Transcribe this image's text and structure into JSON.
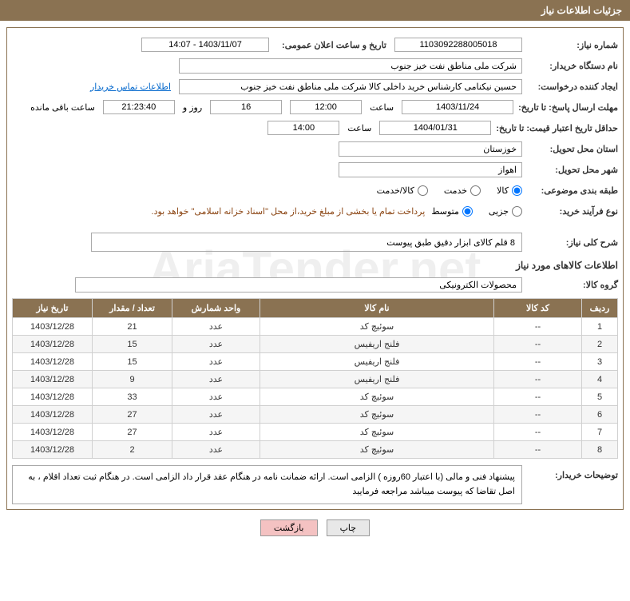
{
  "header": {
    "title": "جزئیات اطلاعات نیاز"
  },
  "fields": {
    "need_no_label": "شماره نیاز:",
    "need_no": "1103092288005018",
    "announce_label": "تاریخ و ساعت اعلان عمومی:",
    "announce_value": "1403/11/07 - 14:07",
    "buyer_org_label": "نام دستگاه خریدار:",
    "buyer_org": "شرکت ملی مناطق نفت خیز جنوب",
    "requester_label": "ایجاد کننده درخواست:",
    "requester": "حسین  نیکنامی   کارشناس خرید داخلی کالا شرکت ملی مناطق نفت خیز جنوب",
    "contact_link": "اطلاعات تماس خریدار",
    "deadline_label": "مهلت ارسال پاسخ: تا تاریخ:",
    "deadline_date": "1403/11/24",
    "time_word": "ساعت",
    "deadline_time": "12:00",
    "remain_days": "16",
    "remain_days_unit": "روز و",
    "remain_time": "21:23:40",
    "remain_suffix": "ساعت باقی مانده",
    "validity_label": "حداقل تاریخ اعتبار قیمت: تا تاریخ:",
    "validity_date": "1404/01/31",
    "validity_time": "14:00",
    "province_label": "استان محل تحویل:",
    "province": "خوزستان",
    "city_label": "شهر محل تحویل:",
    "city": "اهواز",
    "cat_label": "طبقه بندی موضوعی:",
    "cat_goods": "کالا",
    "cat_service": "خدمت",
    "cat_both": "کالا/خدمت",
    "proc_label": "نوع فرآیند خرید:",
    "proc_small": "جزیی",
    "proc_medium": "متوسط",
    "proc_note": "پرداخت تمام یا بخشی از مبلغ خرید،از محل \"اسناد خزانه اسلامی\" خواهد بود.",
    "summary_label": "شرح کلی نیاز:",
    "summary": "8 قلم کالای ابزار دقیق طبق پیوست",
    "goods_section": "اطلاعات کالاهای مورد نیاز",
    "group_label": "گروه کالا:",
    "group": "محصولات الکترونیکی",
    "buyer_notes_label": "توضیحات خریدار:",
    "buyer_notes": "پیشنهاد فنی و مالی (با اعتبار 60روزه ) الزامی است. ارائه ضمانت نامه در هنگام عقد قرار داد الزامی است. در هنگام ثبت تعداد اقلام ،  به اصل تقاضا که پیوست میباشد مراجعه  فرمایید"
  },
  "table": {
    "headers": {
      "row": "ردیف",
      "code": "کد کالا",
      "name": "نام کالا",
      "unit": "واحد شمارش",
      "qty": "تعداد / مقدار",
      "date": "تاریخ نیاز"
    },
    "rows": [
      {
        "row": "1",
        "code": "--",
        "name": "سوئیچ کد",
        "unit": "عدد",
        "qty": "21",
        "date": "1403/12/28"
      },
      {
        "row": "2",
        "code": "--",
        "name": "فلنج اریفیس",
        "unit": "عدد",
        "qty": "15",
        "date": "1403/12/28"
      },
      {
        "row": "3",
        "code": "--",
        "name": "فلنج اریفیس",
        "unit": "عدد",
        "qty": "15",
        "date": "1403/12/28"
      },
      {
        "row": "4",
        "code": "--",
        "name": "فلنج اریفیس",
        "unit": "عدد",
        "qty": "9",
        "date": "1403/12/28"
      },
      {
        "row": "5",
        "code": "--",
        "name": "سوئیچ کد",
        "unit": "عدد",
        "qty": "33",
        "date": "1403/12/28"
      },
      {
        "row": "6",
        "code": "--",
        "name": "سوئیچ کد",
        "unit": "عدد",
        "qty": "27",
        "date": "1403/12/28"
      },
      {
        "row": "7",
        "code": "--",
        "name": "سوئیچ کد",
        "unit": "عدد",
        "qty": "27",
        "date": "1403/12/28"
      },
      {
        "row": "8",
        "code": "--",
        "name": "سوئیچ کد",
        "unit": "عدد",
        "qty": "2",
        "date": "1403/12/28"
      }
    ]
  },
  "buttons": {
    "print": "چاپ",
    "back": "بازگشت"
  },
  "watermark": "AriaTender.net",
  "styling": {
    "header_bg": "#8a7252",
    "header_fg": "#ffffff",
    "border_color": "#8a7252",
    "box_border": "#aaaaaa",
    "th_bg": "#8a7252",
    "th_fg": "#ffffff",
    "td_border": "#d0d0d0",
    "row_alt_bg": "#f5f5f5",
    "link_color": "#0066cc",
    "note_color": "#8b4513",
    "btn_back_bg": "#f4c2c2",
    "btn_print_bg": "#e8e8e8",
    "font_size_base": 11
  }
}
